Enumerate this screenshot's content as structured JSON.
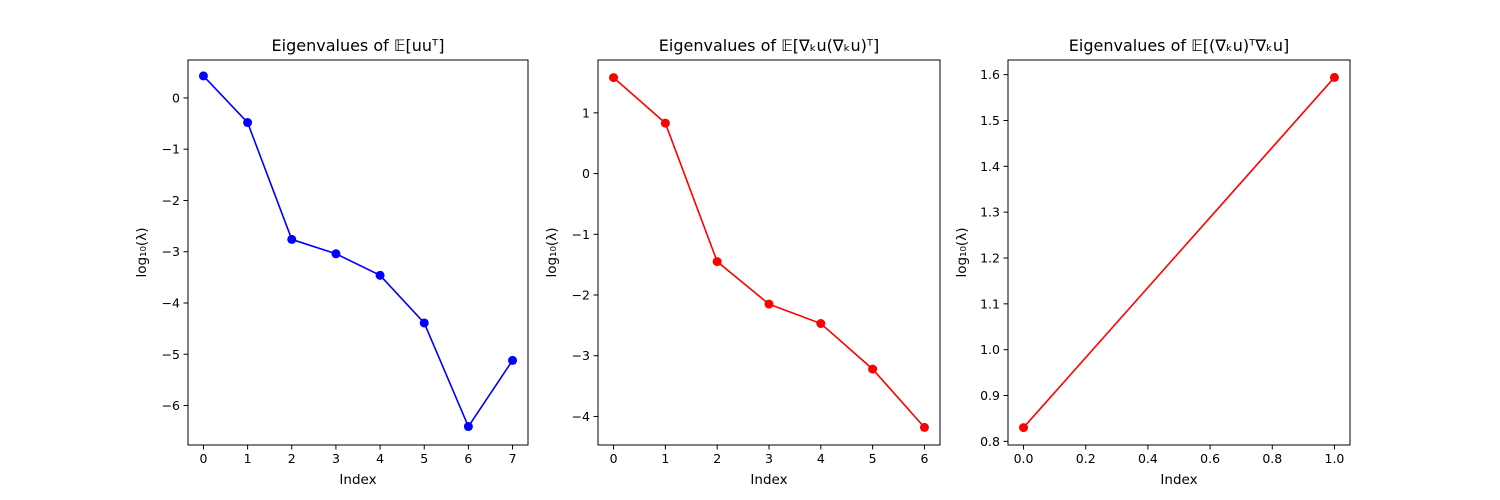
{
  "chart_data": [
    {
      "type": "line",
      "title": "Eigenvalues of 𝔼[uuᵀ]",
      "xlabel": "Index",
      "ylabel": "log₁₀(λ)",
      "x": [
        0,
        1,
        2,
        3,
        4,
        5,
        6,
        7
      ],
      "series": [
        {
          "values": [
            0.43,
            -0.48,
            -2.76,
            -3.04,
            -3.46,
            -4.39,
            -6.41,
            -5.12
          ],
          "color": "#0000ff",
          "marker": "circle"
        }
      ],
      "xlim": [
        -0.35,
        7.35
      ],
      "ylim": [
        -6.77,
        0.74
      ],
      "xticks": [
        0,
        1,
        2,
        3,
        4,
        5,
        6,
        7
      ],
      "yticks": [
        0,
        -1,
        -2,
        -3,
        -4,
        -5,
        -6
      ],
      "xtick_labels": [
        "0",
        "1",
        "2",
        "3",
        "4",
        "5",
        "6",
        "7"
      ],
      "ytick_labels": [
        "0",
        "−1",
        "−2",
        "−3",
        "−4",
        "−5",
        "−6"
      ],
      "grid": false
    },
    {
      "type": "line",
      "title": "Eigenvalues of 𝔼[∇ₖu(∇ₖu)ᵀ]",
      "xlabel": "Index",
      "ylabel": "log₁₀(λ)",
      "x": [
        0,
        1,
        2,
        3,
        4,
        5,
        6
      ],
      "series": [
        {
          "values": [
            1.58,
            0.83,
            -1.45,
            -2.15,
            -2.47,
            -3.22,
            -4.18
          ],
          "color": "#ff0000",
          "marker": "circle"
        }
      ],
      "xlim": [
        -0.3,
        6.3
      ],
      "ylim": [
        -4.47,
        1.87
      ],
      "xticks": [
        0,
        1,
        2,
        3,
        4,
        5,
        6
      ],
      "yticks": [
        1,
        0,
        -1,
        -2,
        -3,
        -4
      ],
      "xtick_labels": [
        "0",
        "1",
        "2",
        "3",
        "4",
        "5",
        "6"
      ],
      "ytick_labels": [
        "1",
        "0",
        "−1",
        "−2",
        "−3",
        "−4"
      ],
      "grid": false
    },
    {
      "type": "line",
      "title": "Eigenvalues of 𝔼[(∇ₖu)ᵀ∇ₖu]",
      "xlabel": "Index",
      "ylabel": "log₁₀(λ)",
      "x": [
        0.0,
        1.0
      ],
      "series": [
        {
          "values": [
            0.83,
            1.594
          ],
          "color": "#ff0000",
          "marker": "circle"
        }
      ],
      "xlim": [
        -0.05,
        1.05
      ],
      "ylim": [
        0.792,
        1.632
      ],
      "xticks": [
        0.0,
        0.2,
        0.4,
        0.6,
        0.8,
        1.0
      ],
      "yticks": [
        1.6,
        1.5,
        1.4,
        1.3,
        1.2,
        1.1,
        1.0,
        0.9,
        0.8
      ],
      "xtick_labels": [
        "0.0",
        "0.2",
        "0.4",
        "0.6",
        "0.8",
        "1.0"
      ],
      "ytick_labels": [
        "1.6",
        "1.5",
        "1.4",
        "1.3",
        "1.2",
        "1.1",
        "1.0",
        "0.9",
        "0.8"
      ],
      "grid": false
    }
  ]
}
